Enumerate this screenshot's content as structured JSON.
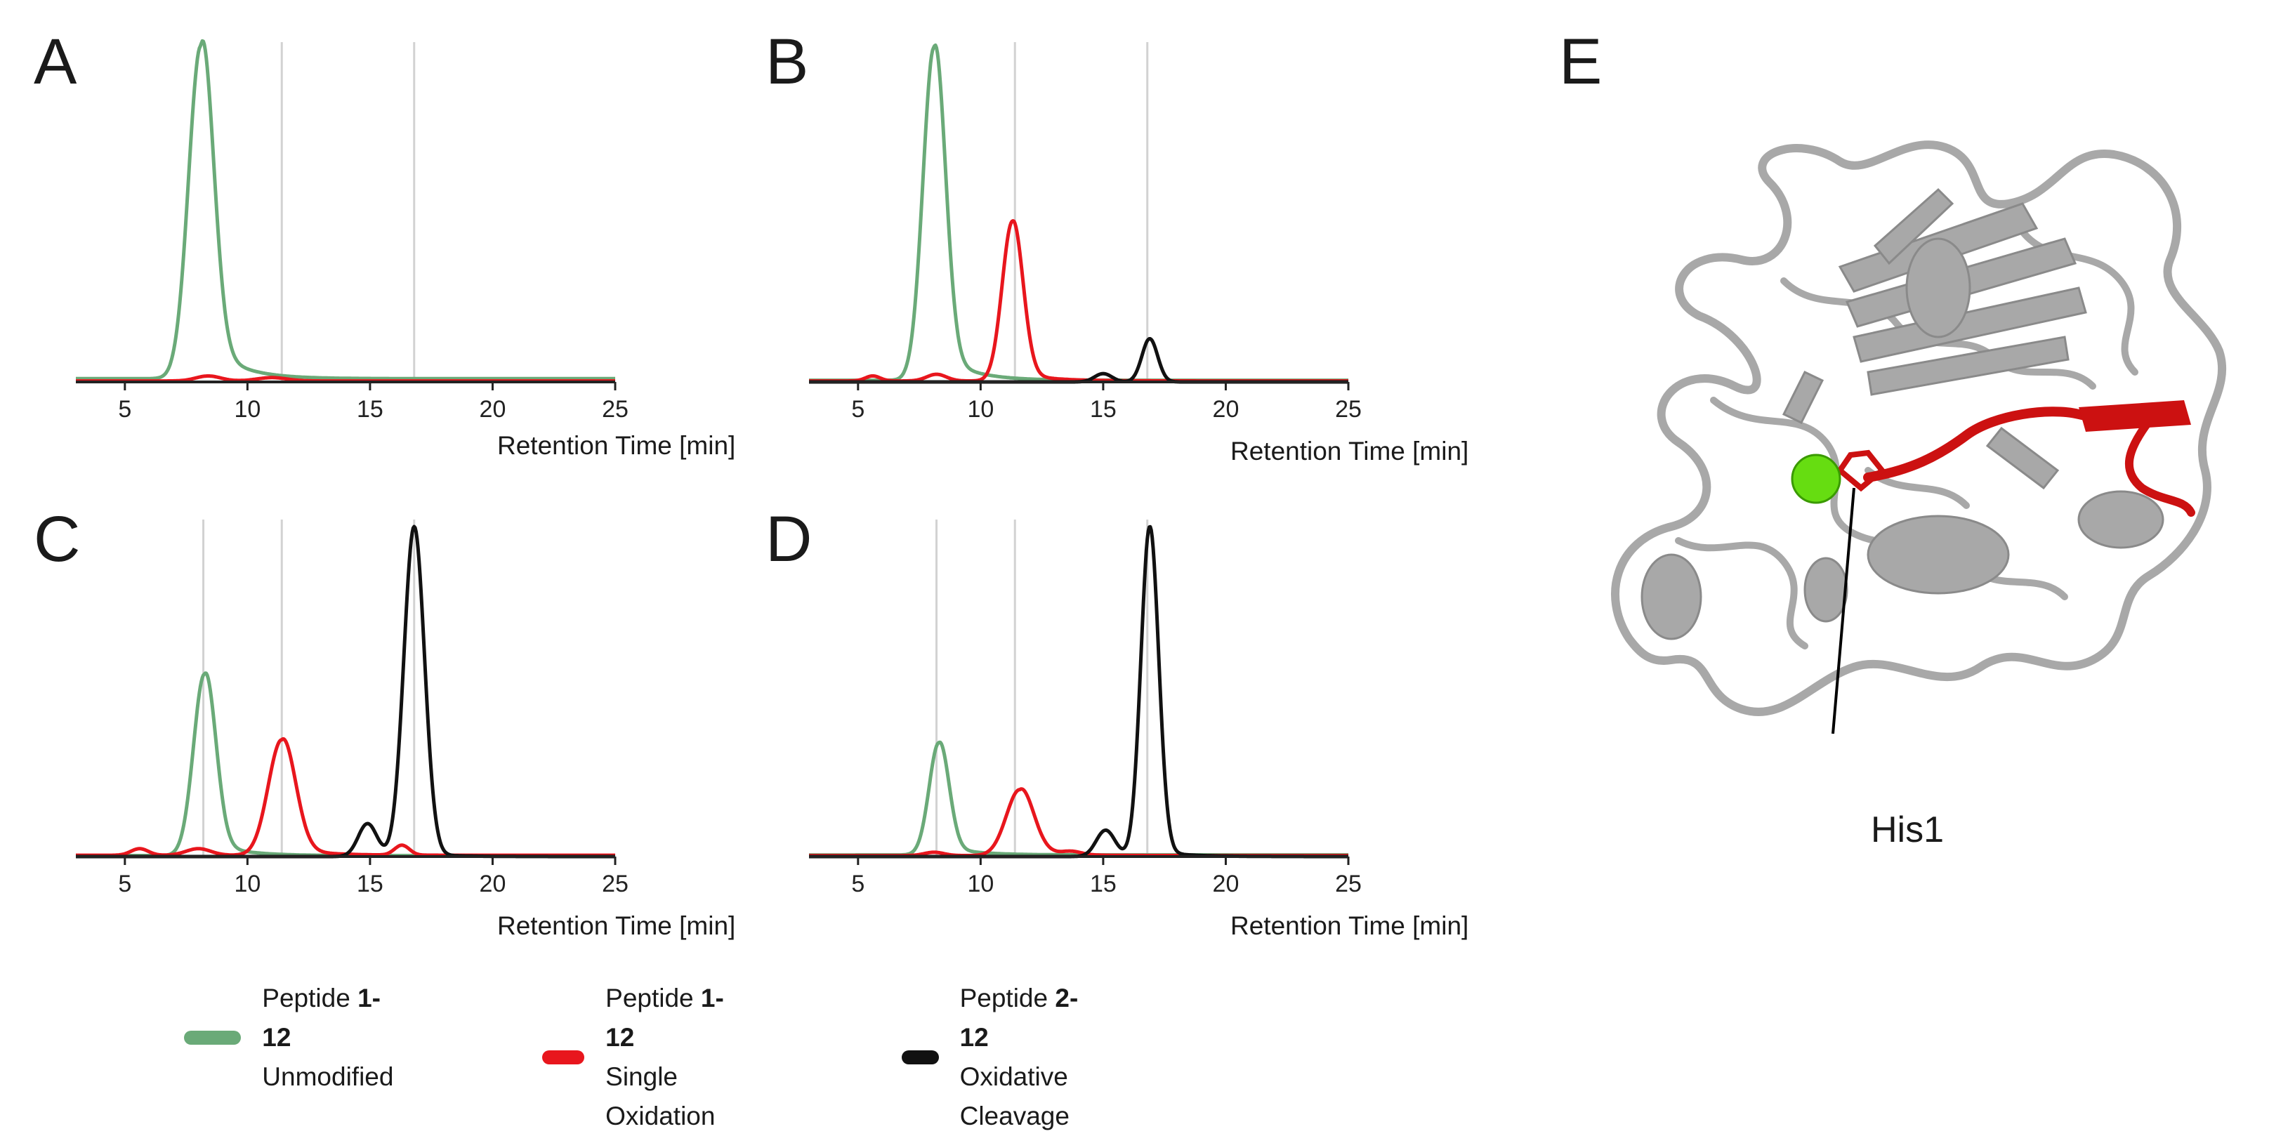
{
  "figure": {
    "panel_letters": [
      "A",
      "B",
      "C",
      "D",
      "E"
    ],
    "his_label": "His1"
  },
  "colors": {
    "unmodified": "#6aaa78",
    "single_oxidation": "#e8161d",
    "oxidative_cleavage": "#111111",
    "guide_line": "#d2d2d2",
    "protein_gray": "#a8a8a8",
    "protein_red": "#cc1111",
    "metal_green": "#66dd11"
  },
  "legend": [
    {
      "name": "Peptide",
      "bold": "1-12",
      "sub": "Unmodified",
      "color": "#6aaa78"
    },
    {
      "name": "Peptide",
      "bold": "1-12",
      "sub": "Single Oxidation",
      "color": "#e8161d"
    },
    {
      "name": "Peptide",
      "bold": "2-12",
      "sub": "Oxidative Cleavage",
      "color": "#111111"
    }
  ],
  "chart_data": [
    {
      "panel": "A",
      "type": "line",
      "xlabel": "Retention Time [min]",
      "ylabel": "",
      "xlim": [
        3,
        25
      ],
      "xticks": [
        5,
        10,
        15,
        20,
        25
      ],
      "ylim": [
        0,
        100
      ],
      "guide_lines": [
        11.4,
        16.8
      ],
      "series": [
        {
          "name": "Peptide 1-12 Unmodified",
          "color": "#6aaa78",
          "baseline": 1.0,
          "peaks": [
            {
              "x": 8.1,
              "height": 100,
              "width": 0.5,
              "tail": 14
            }
          ]
        },
        {
          "name": "Peptide 1-12 Single Oxidation",
          "color": "#e8161d",
          "baseline": 0.3,
          "peaks": [
            {
              "x": 8.4,
              "height": 1.5,
              "width": 0.5,
              "tail": 0
            },
            {
              "x": 11.0,
              "height": 1.0,
              "width": 0.6,
              "tail": 0
            }
          ]
        }
      ]
    },
    {
      "panel": "B",
      "type": "line",
      "xlabel": "Retention Time [min]",
      "ylabel": "",
      "xlim": [
        3,
        25
      ],
      "xticks": [
        5,
        10,
        15,
        20,
        25
      ],
      "ylim": [
        0,
        100
      ],
      "guide_lines": [
        11.4,
        16.8
      ],
      "series": [
        {
          "name": "Peptide 1-12 Unmodified",
          "color": "#6aaa78",
          "baseline": 0.5,
          "peaks": [
            {
              "x": 8.1,
              "height": 100,
              "width": 0.45,
              "tail": 10
            }
          ]
        },
        {
          "name": "Peptide 1-12 Single Oxidation",
          "color": "#e8161d",
          "baseline": 0.3,
          "peaks": [
            {
              "x": 5.6,
              "height": 1.5,
              "width": 0.3,
              "tail": 0
            },
            {
              "x": 8.2,
              "height": 2.0,
              "width": 0.4,
              "tail": 0
            },
            {
              "x": 11.3,
              "height": 48,
              "width": 0.42,
              "tail": 3
            }
          ]
        },
        {
          "name": "Peptide 2-12 Oxidative Cleavage",
          "color": "#111111",
          "baseline": 0.0,
          "peaks": [
            {
              "x": 15.0,
              "height": 2.5,
              "width": 0.35,
              "tail": 0
            },
            {
              "x": 16.9,
              "height": 13,
              "width": 0.32,
              "tail": 0
            }
          ]
        }
      ]
    },
    {
      "panel": "C",
      "type": "line",
      "xlabel": "Retention Time [min]",
      "ylabel": "",
      "xlim": [
        3,
        25
      ],
      "xticks": [
        5,
        10,
        15,
        20,
        25
      ],
      "ylim": [
        0,
        100
      ],
      "guide_lines": [
        8.2,
        11.4,
        16.8
      ],
      "series": [
        {
          "name": "Peptide 1-12 Unmodified",
          "color": "#6aaa78",
          "baseline": 0.3,
          "peaks": [
            {
              "x": 8.25,
              "height": 55,
              "width": 0.45,
              "tail": 5
            }
          ]
        },
        {
          "name": "Peptide 1-12 Single Oxidation",
          "color": "#e8161d",
          "baseline": 0.4,
          "peaks": [
            {
              "x": 5.6,
              "height": 2.0,
              "width": 0.35,
              "tail": 0
            },
            {
              "x": 8.0,
              "height": 2.0,
              "width": 0.5,
              "tail": 0
            },
            {
              "x": 11.4,
              "height": 35,
              "width": 0.55,
              "tail": 3
            },
            {
              "x": 16.3,
              "height": 3.0,
              "width": 0.3,
              "tail": 0
            }
          ]
        },
        {
          "name": "Peptide 2-12 Oxidative Cleavage",
          "color": "#111111",
          "baseline": 0.0,
          "peaks": [
            {
              "x": 14.9,
              "height": 10,
              "width": 0.38,
              "tail": 0
            },
            {
              "x": 16.8,
              "height": 100,
              "width": 0.42,
              "tail": 1
            }
          ]
        }
      ]
    },
    {
      "panel": "D",
      "type": "line",
      "xlabel": "Retention Time [min]",
      "ylabel": "",
      "xlim": [
        3,
        25
      ],
      "xticks": [
        5,
        10,
        15,
        20,
        25
      ],
      "ylim": [
        0,
        100
      ],
      "guide_lines": [
        8.2,
        11.4,
        16.8
      ],
      "series": [
        {
          "name": "Peptide 1-12 Unmodified",
          "color": "#6aaa78",
          "baseline": 0.5,
          "peaks": [
            {
              "x": 8.3,
              "height": 34,
              "width": 0.4,
              "tail": 3
            }
          ]
        },
        {
          "name": "Peptide 1-12 Single Oxidation",
          "color": "#e8161d",
          "baseline": 0.3,
          "peaks": [
            {
              "x": 8.1,
              "height": 1.0,
              "width": 0.4,
              "tail": 0
            },
            {
              "x": 11.6,
              "height": 20,
              "width": 0.55,
              "tail": 2
            },
            {
              "x": 13.7,
              "height": 1.0,
              "width": 0.4,
              "tail": 0
            }
          ]
        },
        {
          "name": "Peptide 2-12 Oxidative Cleavage",
          "color": "#111111",
          "baseline": 0.0,
          "peaks": [
            {
              "x": 15.1,
              "height": 8,
              "width": 0.38,
              "tail": 0
            },
            {
              "x": 16.9,
              "height": 100,
              "width": 0.36,
              "tail": 2
            }
          ]
        }
      ]
    }
  ]
}
